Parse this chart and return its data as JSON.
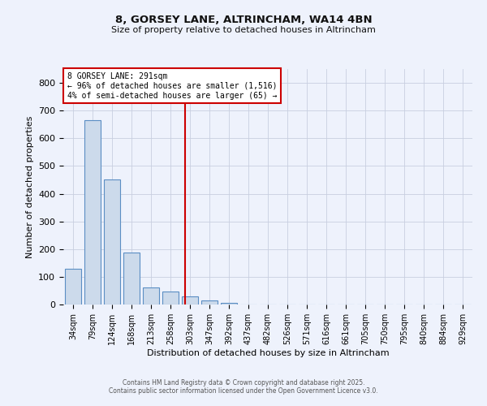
{
  "title": "8, GORSEY LANE, ALTRINCHAM, WA14 4BN",
  "subtitle": "Size of property relative to detached houses in Altrincham",
  "xlabel": "Distribution of detached houses by size in Altrincham",
  "ylabel": "Number of detached properties",
  "bar_labels": [
    "34sqm",
    "79sqm",
    "124sqm",
    "168sqm",
    "213sqm",
    "258sqm",
    "303sqm",
    "347sqm",
    "392sqm",
    "437sqm",
    "482sqm",
    "526sqm",
    "571sqm",
    "616sqm",
    "661sqm",
    "705sqm",
    "750sqm",
    "795sqm",
    "840sqm",
    "884sqm",
    "929sqm"
  ],
  "bar_values": [
    128,
    665,
    450,
    188,
    62,
    48,
    28,
    14,
    6,
    0,
    0,
    0,
    0,
    0,
    0,
    0,
    0,
    0,
    0,
    0,
    0
  ],
  "bar_color": "#ccdaeb",
  "bar_edgecolor": "#5b8ec4",
  "ylim": [
    0,
    850
  ],
  "yticks": [
    0,
    100,
    200,
    300,
    400,
    500,
    600,
    700,
    800
  ],
  "marker_line_color": "#cc0000",
  "annotation_line1": "8 GORSEY LANE: 291sqm",
  "annotation_line2": "← 96% of detached houses are smaller (1,516)",
  "annotation_line3": "4% of semi-detached houses are larger (65) →",
  "bg_color": "#eef2fc",
  "grid_color": "#c8cfe0",
  "footer1": "Contains HM Land Registry data © Crown copyright and database right 2025.",
  "footer2": "Contains public sector information licensed under the Open Government Licence v3.0."
}
